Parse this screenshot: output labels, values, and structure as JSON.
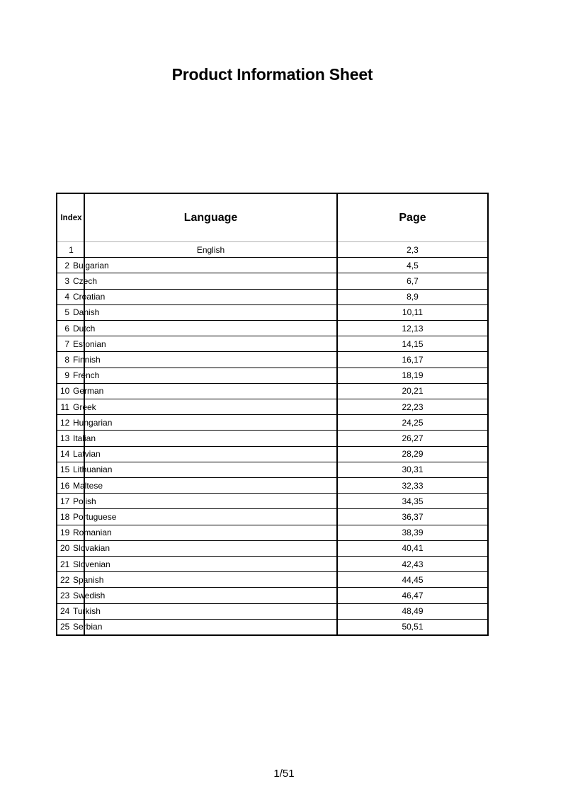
{
  "page": {
    "title": "Product Information Sheet",
    "footer": "1/51"
  },
  "table": {
    "headers": {
      "index": "Index",
      "language": "Language",
      "page": "Page"
    },
    "rows": [
      {
        "index": "1",
        "language": "English",
        "page": "2,3",
        "centered": true
      },
      {
        "index": "2",
        "language": "Bulgarian",
        "page": "4,5"
      },
      {
        "index": "3",
        "language": "Czech",
        "page": "6,7"
      },
      {
        "index": "4",
        "language": "Croatian",
        "page": "8,9"
      },
      {
        "index": "5",
        "language": "Danish",
        "page": "10,11"
      },
      {
        "index": "6",
        "language": "Dutch",
        "page": "12,13"
      },
      {
        "index": "7",
        "language": "Estonian",
        "page": "14,15"
      },
      {
        "index": "8",
        "language": "Finnish",
        "page": "16,17"
      },
      {
        "index": "9",
        "language": "French",
        "page": "18,19"
      },
      {
        "index": "10",
        "language": "German",
        "page": "20,21"
      },
      {
        "index": "11",
        "language": "Greek",
        "page": "22,23"
      },
      {
        "index": "12",
        "language": "Hungarian",
        "page": "24,25"
      },
      {
        "index": "13",
        "language": "Italian",
        "page": "26,27"
      },
      {
        "index": "14",
        "language": "Latvian",
        "page": "28,29"
      },
      {
        "index": "15",
        "language": "Lithuanian",
        "page": "30,31"
      },
      {
        "index": "16",
        "language": "Maltese",
        "page": "32,33"
      },
      {
        "index": "17",
        "language": "Polish",
        "page": "34,35"
      },
      {
        "index": "18",
        "language": "Portuguese",
        "page": "36,37"
      },
      {
        "index": "19",
        "language": "Romanian",
        "page": "38,39"
      },
      {
        "index": "20",
        "language": "Slovakian",
        "page": "40,41"
      },
      {
        "index": "21",
        "language": "Slovenian",
        "page": "42,43"
      },
      {
        "index": "22",
        "language": "Spanish",
        "page": "44,45"
      },
      {
        "index": "23",
        "language": "Swedish",
        "page": "46,47"
      },
      {
        "index": "24",
        "language": "Turkish",
        "page": "48,49"
      },
      {
        "index": "25",
        "language": "Serbian",
        "page": "50,51"
      }
    ]
  },
  "colors": {
    "text": "#000000",
    "table_border": "#000000",
    "header_separator": "#b3b3b3",
    "background": "#ffffff"
  }
}
